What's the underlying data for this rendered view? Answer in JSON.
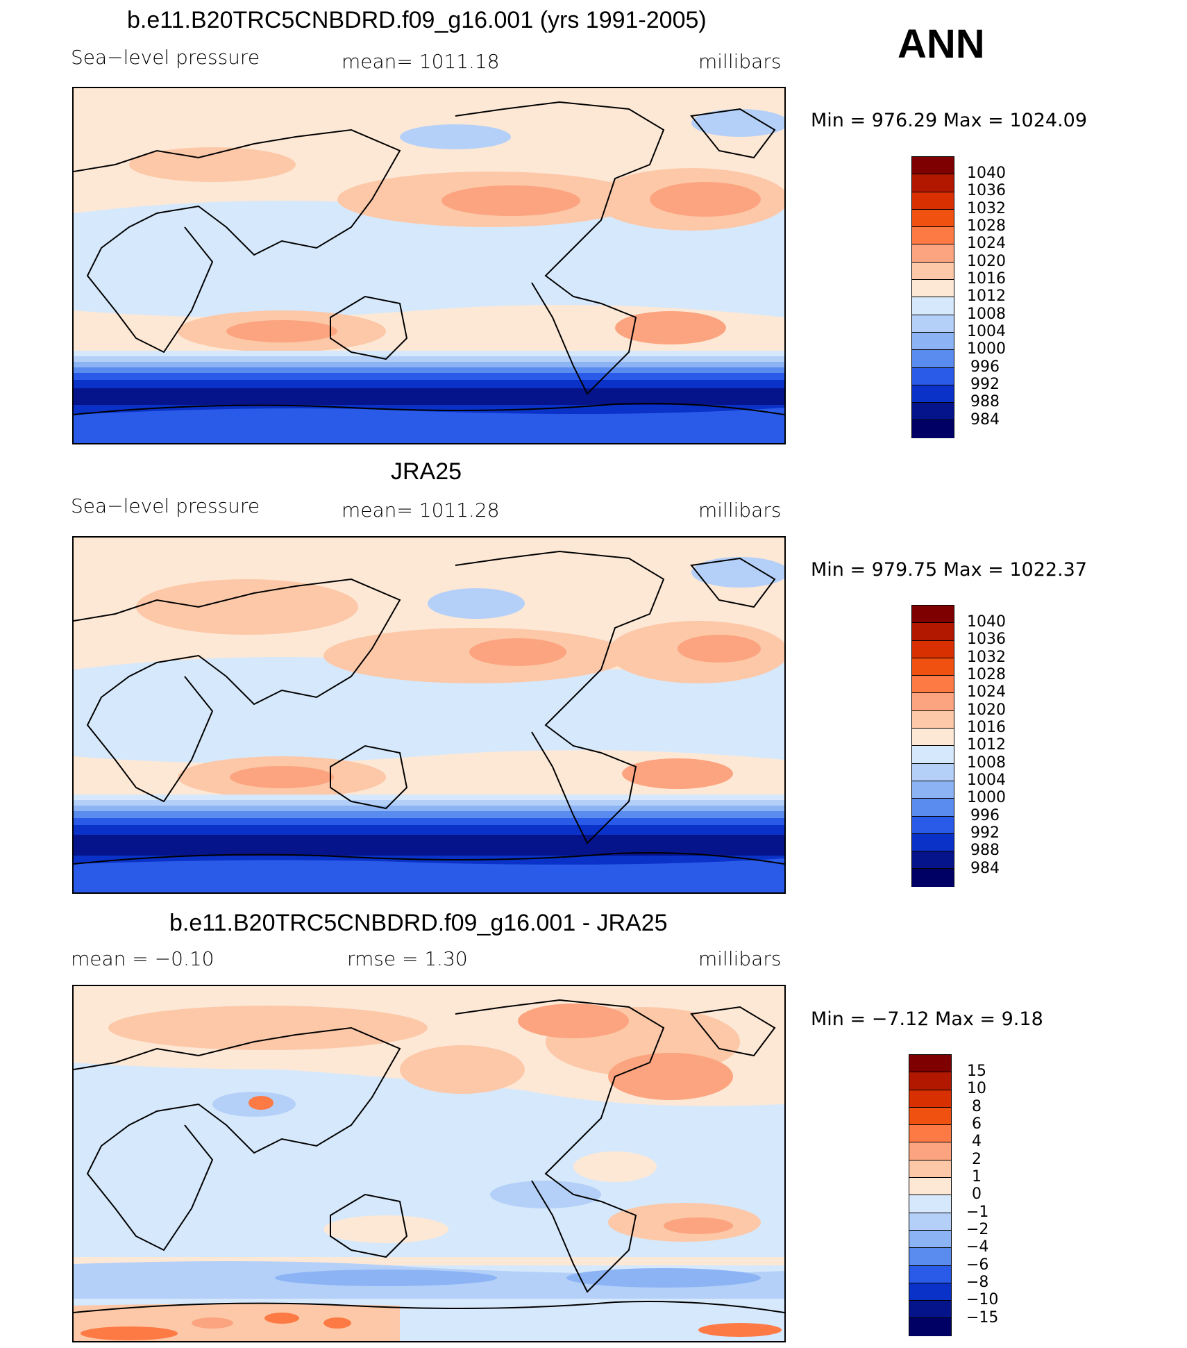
{
  "panels": [
    {
      "title": "b.e11.B20TRC5CNBDRD.f09_g16.001 (yrs 1991-2005)",
      "left_label": "Sea−level pressure",
      "center_label": "mean=  1011.18",
      "units": "millibars",
      "minmax": "Min  =  976.29  Max  =  1024.09",
      "colorbar_labels": [
        "1040",
        "1036",
        "1032",
        "1028",
        "1024",
        "1020",
        "1016",
        "1012",
        "1008",
        "1004",
        "1000",
        "996",
        "992",
        "988",
        "984"
      ]
    },
    {
      "title": "JRA25",
      "left_label": "Sea−level pressure",
      "center_label": "mean=  1011.28",
      "units": "millibars",
      "minmax": "Min  =  979.75  Max  =  1022.37",
      "colorbar_labels": [
        "1040",
        "1036",
        "1032",
        "1028",
        "1024",
        "1020",
        "1016",
        "1012",
        "1008",
        "1004",
        "1000",
        "996",
        "992",
        "988",
        "984"
      ]
    },
    {
      "title": "b.e11.B20TRC5CNBDRD.f09_g16.001 - JRA25",
      "left_label": "mean  =    −0.10",
      "center_label": "rmse  =     1.30",
      "units": "millibars",
      "minmax": "Min  =    −7.12  Max  =      9.18",
      "colorbar_labels": [
        "15",
        "10",
        "8",
        "6",
        "4",
        "2",
        "1",
        "0",
        "−1",
        "−2",
        "−4",
        "−6",
        "−8",
        "−10",
        "−15"
      ]
    }
  ],
  "season": "ANN",
  "colors": {
    "scale": [
      "#7f0000",
      "#b21800",
      "#d83000",
      "#f05010",
      "#fd7a45",
      "#fba47f",
      "#fcc8a8",
      "#fde8d6",
      "#d6e8fb",
      "#b4d0f8",
      "#8cb4f5",
      "#5a8cf0",
      "#2a5ae8",
      "#0a32c8",
      "#06148c",
      "#000064"
    ]
  }
}
